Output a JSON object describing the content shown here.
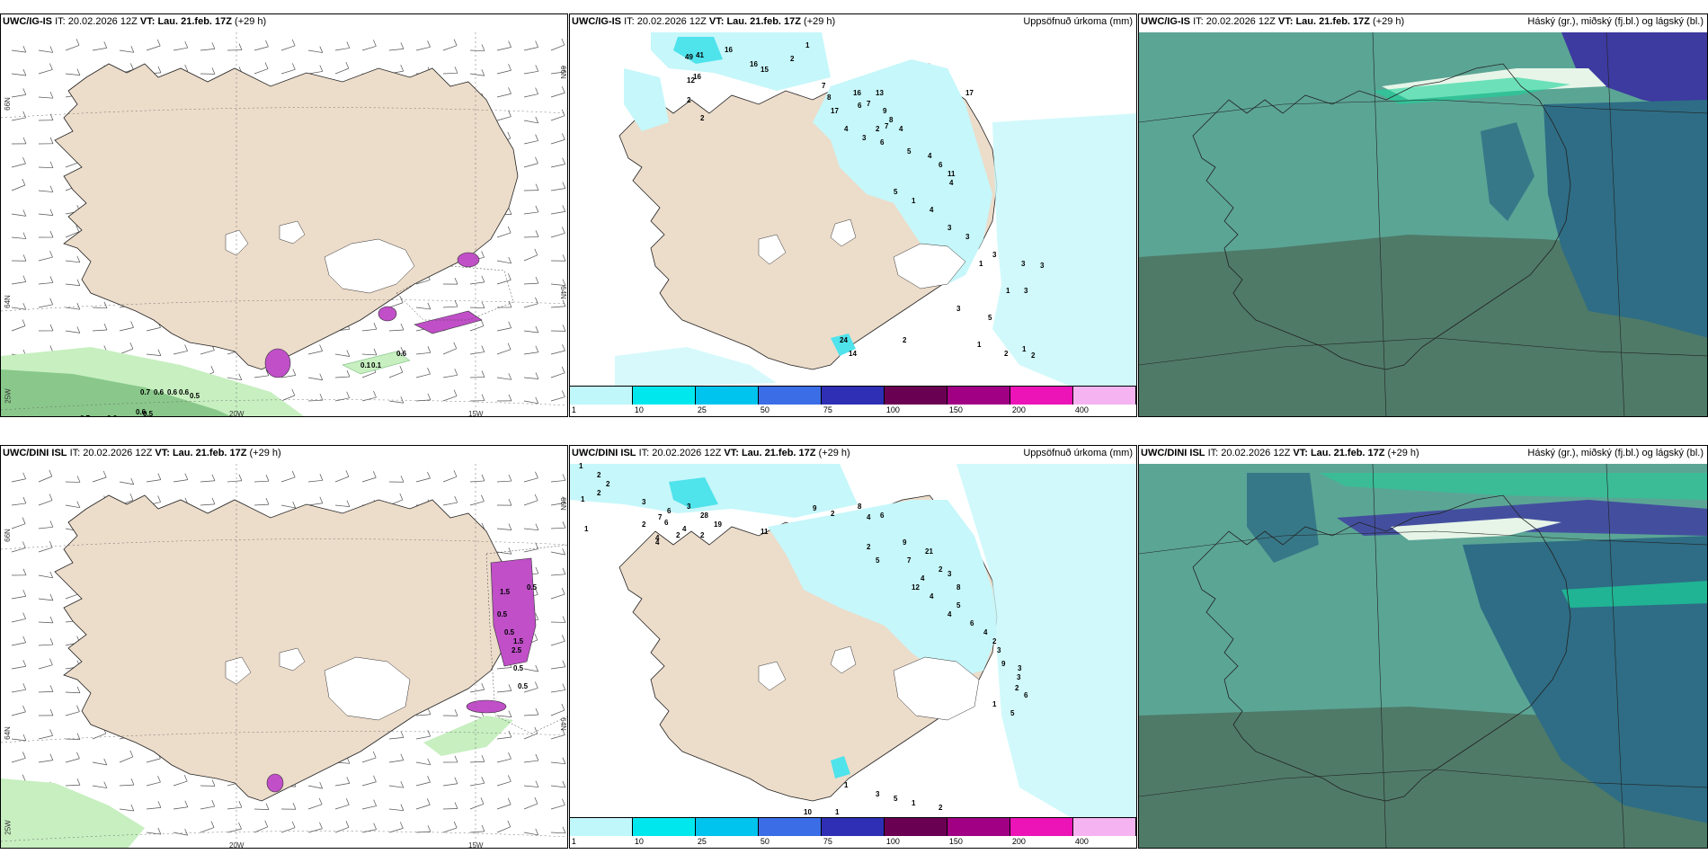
{
  "rows": [
    {
      "model": "UWC/IG-IS",
      "panels": [
        {
          "model": "UWC/IG-IS",
          "it_label": "IT:",
          "it_value": "20.02.2026 12Z",
          "vt_label": "VT:",
          "vt_value": "Lau. 21.feb. 17Z",
          "lead": "(+29 h)",
          "right_title": ""
        },
        {
          "model": "UWC/IG-IS",
          "it_label": "IT:",
          "it_value": "20.02.2026 12Z",
          "vt_label": "VT:",
          "vt_value": "Lau. 21.feb. 17Z",
          "lead": "(+29 h)",
          "right_title": "Uppsöfnuð úrkoma (mm)"
        },
        {
          "model": "UWC/IG-IS",
          "it_label": "IT:",
          "it_value": "20.02.2026 12Z",
          "vt_label": "VT:",
          "vt_value": "Lau. 21.feb. 17Z",
          "lead": "(+29 h)",
          "right_title": "Háský (gr.), miðský (fj.bl.) og lágský (bl.)"
        }
      ],
      "axis_labels": {
        "lon1": "20W",
        "lon2": "15W",
        "lat1": "66N",
        "lat2": "64N",
        "lat3": "25W",
        "lat_right1": "66N",
        "lat_right2": "64N"
      },
      "ice_values": [
        "0.7",
        "0.6",
        "0.6",
        "0.6",
        "0.5",
        "0.7",
        "0.6",
        "0.6",
        "0.5",
        "0.1",
        "0.1",
        "0.6"
      ],
      "precip_values": [
        "49",
        "41",
        "16",
        "16",
        "15",
        "2",
        "1",
        "16",
        "12",
        "2",
        "2",
        "7",
        "8",
        "17",
        "16",
        "13",
        "7",
        "6",
        "9",
        "8",
        "4",
        "3",
        "7",
        "17",
        "2",
        "6",
        "4",
        "5",
        "4",
        "6",
        "11",
        "4",
        "5",
        "1",
        "4",
        "3",
        "3",
        "3",
        "1",
        "3",
        "3",
        "1",
        "3",
        "3",
        "5",
        "2",
        "1",
        "2",
        "1",
        "2",
        "24",
        "14"
      ]
    },
    {
      "model": "UWC/DINI ISL",
      "panels": [
        {
          "model": "UWC/DINI ISL",
          "it_label": "IT:",
          "it_value": "20.02.2026 12Z",
          "vt_label": "VT:",
          "vt_value": "Lau. 21.feb. 17Z",
          "lead": "(+29 h)",
          "right_title": ""
        },
        {
          "model": "UWC/DINI ISL",
          "it_label": "IT:",
          "it_value": "20.02.2026 12Z",
          "vt_label": "VT:",
          "vt_value": "Lau. 21.feb. 17Z",
          "lead": "(+29 h)",
          "right_title": "Uppsöfnuð úrkoma (mm)"
        },
        {
          "model": "UWC/DINI ISL",
          "it_label": "IT:",
          "it_value": "20.02.2026 12Z",
          "vt_label": "VT:",
          "vt_value": "Lau. 21.feb. 17Z",
          "lead": "(+29 h)",
          "right_title": "Háský (gr.), miðský (fj.bl.) og lágský (bl.)"
        }
      ],
      "axis_labels": {
        "lon1": "20W",
        "lon2": "15W",
        "lat1": "66N",
        "lat2": "64N",
        "lat3": "25W",
        "lat_right1": "66N",
        "lat_right2": "64N"
      },
      "ice_values": [
        "0.5",
        "1.5",
        "0.5",
        "0.5",
        "1.5",
        "2.5",
        "0.5",
        "0.5"
      ],
      "precip_values": [
        "1",
        "2",
        "2",
        "2",
        "1",
        "1",
        "3",
        "6",
        "7",
        "6",
        "4",
        "28",
        "19",
        "4",
        "2",
        "4",
        "3",
        "2",
        "2",
        "11",
        "9",
        "2",
        "8",
        "4",
        "6",
        "2",
        "9",
        "21",
        "7",
        "5",
        "2",
        "3",
        "4",
        "12",
        "4",
        "8",
        "5",
        "4",
        "6",
        "4",
        "2",
        "3",
        "9",
        "3",
        "3",
        "2",
        "6",
        "1",
        "5",
        "10",
        "1",
        "1",
        "3",
        "5",
        "1",
        "2"
      ]
    }
  ],
  "colorbar": {
    "labels": [
      "1",
      "10",
      "25",
      "50",
      "75",
      "100",
      "150",
      "200",
      "400"
    ],
    "colors": [
      "#bff7fa",
      "#00e8ee",
      "#00c4ee",
      "#3a6de6",
      "#2e2fb5",
      "#6a0052",
      "#a10084",
      "#ec13b7",
      "#f5b3f2"
    ]
  },
  "colors": {
    "land": "#ecdcca",
    "precip_light": "#c6f7fa",
    "precip_mid": "#4fe3ec",
    "ice_magenta": "#c04fc8",
    "ice_green_light": "#c7efc0",
    "ice_green_dark": "#5fae66",
    "cloud_base": "#5ba595",
    "cloud_low": "#4f7a68",
    "cloud_mid": "#2e6d85",
    "cloud_high": "#3d3aa0"
  }
}
